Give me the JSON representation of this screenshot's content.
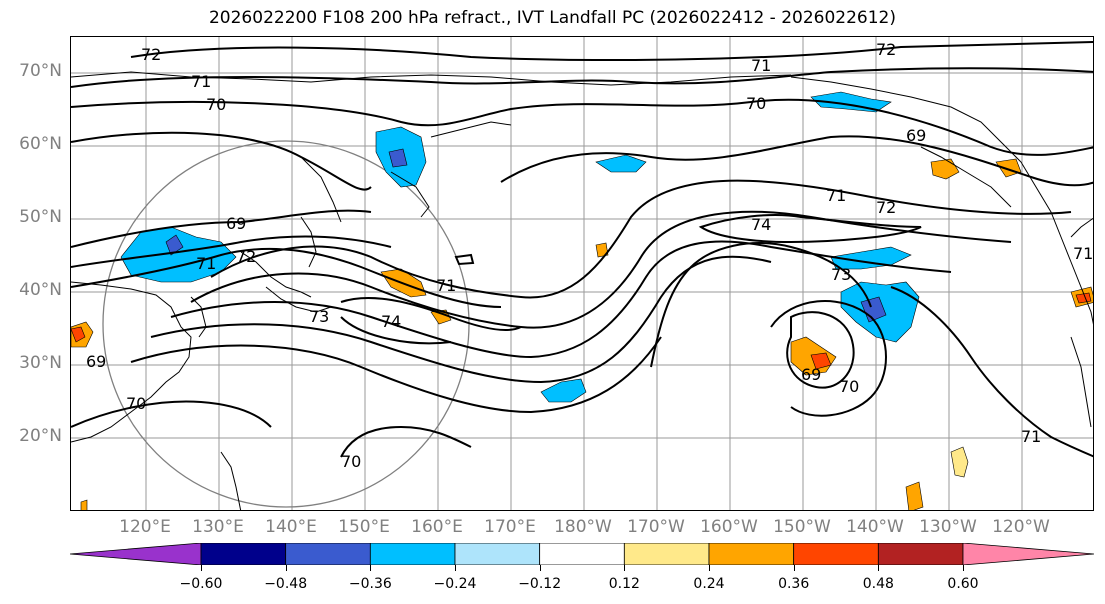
{
  "title": "2026022200 F108 200 hPa refract., IVT Landfall PC (2026022412 - 2026022612)",
  "lat_labels": [
    "70°N",
    "60°N",
    "50°N",
    "40°N",
    "30°N",
    "20°N"
  ],
  "lon_labels": [
    "120°E",
    "130°E",
    "140°E",
    "150°E",
    "160°E",
    "170°E",
    "180°W",
    "170°W",
    "160°W",
    "150°W",
    "140°W",
    "130°W",
    "120°W"
  ],
  "contour_labels": [
    "72",
    "71",
    "70",
    "69",
    "71",
    "72",
    "71",
    "73",
    "74",
    "69",
    "70",
    "72",
    "71",
    "70",
    "69",
    "71",
    "72",
    "74",
    "73",
    "69",
    "70",
    "71",
    "71",
    "70"
  ],
  "colorbar": {
    "colors": [
      "#9932cc",
      "#00008b",
      "#3a5bcf",
      "#00bfff",
      "#aee4fb",
      "#ffffff",
      "#ffe98a",
      "#ffa500",
      "#ff4500",
      "#b22222",
      "#ff85a8"
    ],
    "ticks": [
      "−0.60",
      "−0.48",
      "−0.36",
      "−0.24",
      "−0.12",
      "0.12",
      "0.24",
      "0.36",
      "0.48",
      "0.60"
    ]
  }
}
